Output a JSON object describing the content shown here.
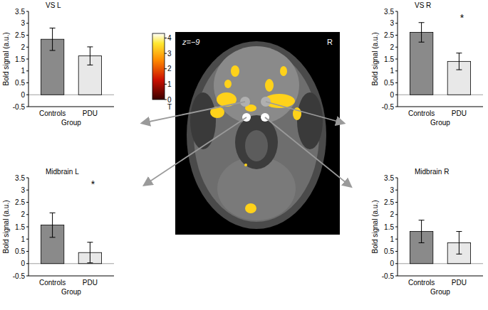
{
  "chart_data": [
    {
      "type": "bar",
      "title": "VS L",
      "categories": [
        "Controls",
        "PDU"
      ],
      "values": [
        2.33,
        1.63
      ],
      "errors": [
        0.47,
        0.38
      ],
      "colors": [
        "#8a8a8a",
        "#e8e8e8"
      ],
      "x_label": "Group",
      "y_label": "Bold signal (a.u.)",
      "ylim": [
        -0.5,
        3.5
      ],
      "yticks": [
        -0.5,
        0,
        0.5,
        1,
        1.5,
        2,
        2.5,
        3,
        3.5
      ]
    },
    {
      "type": "bar",
      "title": "VS R",
      "categories": [
        "Controls",
        "PDU"
      ],
      "values": [
        2.62,
        1.4
      ],
      "errors": [
        0.41,
        0.35
      ],
      "colors": [
        "#8a8a8a",
        "#e8e8e8"
      ],
      "x_label": "Group",
      "y_label": "Bold signal (a.u.)",
      "ylim": [
        -0.5,
        3.5
      ],
      "yticks": [
        -0.5,
        0,
        0.5,
        1,
        1.5,
        2,
        2.5,
        3,
        3.5
      ],
      "annotations": [
        "*"
      ]
    },
    {
      "type": "bar",
      "title": "Midbrain L",
      "categories": [
        "Controls",
        "PDU"
      ],
      "values": [
        1.57,
        0.45
      ],
      "errors": [
        0.5,
        0.42
      ],
      "colors": [
        "#8a8a8a",
        "#e8e8e8"
      ],
      "x_label": "Group",
      "y_label": "Bold signal (a.u.)",
      "ylim": [
        -0.5,
        3.5
      ],
      "yticks": [
        -0.5,
        0,
        0.5,
        1,
        1.5,
        2,
        2.5,
        3,
        3.5
      ],
      "annotations": [
        "*"
      ]
    },
    {
      "type": "bar",
      "title": "Midbrain R",
      "categories": [
        "Controls",
        "PDU"
      ],
      "values": [
        1.31,
        0.85
      ],
      "errors": [
        0.46,
        0.46
      ],
      "colors": [
        "#8a8a8a",
        "#e8e8e8"
      ],
      "x_label": "Group",
      "y_label": "Bold signal (a.u.)",
      "ylim": [
        -0.5,
        3.5
      ],
      "yticks": [
        -0.5,
        0,
        0.5,
        1,
        1.5,
        2,
        2.5,
        3,
        3.5
      ]
    }
  ],
  "brain_image": {
    "slice_label": "z=−9",
    "side_label": "R",
    "colorbar": {
      "label": "T",
      "range": [
        0,
        4.3
      ],
      "ticks": [
        0,
        1,
        2,
        3,
        4
      ]
    }
  }
}
